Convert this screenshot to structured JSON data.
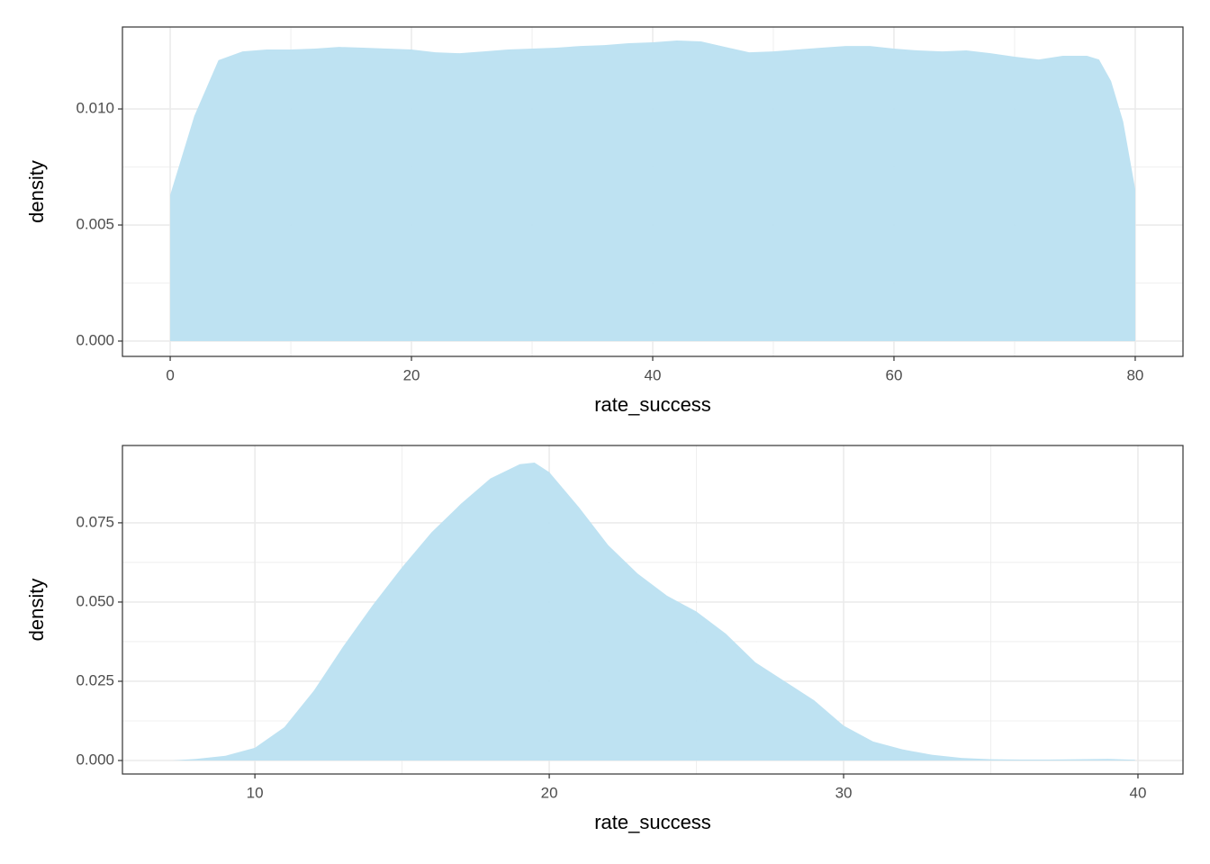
{
  "chart_data": [
    {
      "type": "area",
      "x_label": "rate_success",
      "y_label": "density",
      "color": "#bae0f1",
      "grid": true,
      "xlim": [
        -3.96,
        83.96
      ],
      "ylim": [
        -0.00066,
        0.01353
      ],
      "xticks": [
        0,
        20,
        40,
        60,
        80
      ],
      "yticks": [
        {
          "value": 0,
          "label": "0.000"
        },
        {
          "value": 0.005,
          "label": "0.005"
        },
        {
          "value": 0.01,
          "label": "0.010"
        }
      ],
      "x": [
        0,
        2,
        4,
        6,
        8,
        10,
        12,
        14,
        16,
        18,
        20,
        22,
        24,
        26,
        28,
        30,
        32,
        34,
        36,
        38,
        40,
        42,
        44,
        46,
        48,
        50,
        52,
        54,
        56,
        58,
        60,
        62,
        64,
        66,
        68,
        70,
        72,
        74,
        76,
        77,
        78,
        79,
        80
      ],
      "values": [
        0.0063,
        0.0097,
        0.0121,
        0.01248,
        0.01256,
        0.01256,
        0.0126,
        0.01267,
        0.01264,
        0.0126,
        0.01256,
        0.01244,
        0.0124,
        0.01248,
        0.01256,
        0.0126,
        0.01264,
        0.01271,
        0.01275,
        0.01283,
        0.01287,
        0.01295,
        0.01291,
        0.01267,
        0.01244,
        0.01248,
        0.01256,
        0.01264,
        0.01271,
        0.01271,
        0.0126,
        0.01252,
        0.01248,
        0.01252,
        0.0124,
        0.01225,
        0.01213,
        0.01229,
        0.01229,
        0.01213,
        0.0112,
        0.00946,
        0.00655
      ]
    },
    {
      "type": "area",
      "x_label": "rate_success",
      "y_label": "density",
      "color": "#bae0f1",
      "grid": true,
      "xlim": [
        5.5,
        41.53
      ],
      "ylim": [
        -0.00426,
        0.0994
      ],
      "xticks": [
        10,
        20,
        30,
        40
      ],
      "yticks": [
        {
          "value": 0,
          "label": "0.000"
        },
        {
          "value": 0.025,
          "label": "0.025"
        },
        {
          "value": 0.05,
          "label": "0.050"
        },
        {
          "value": 0.075,
          "label": "0.075"
        }
      ],
      "x": [
        7.2,
        8,
        9,
        10,
        11,
        12,
        13,
        14,
        15,
        16,
        17,
        18,
        19,
        19.5,
        20,
        21,
        22,
        23,
        24,
        25,
        26,
        27,
        28,
        29,
        30,
        31,
        32,
        33,
        34,
        35,
        36,
        37,
        38,
        39,
        39.9
      ],
      "values": [
        0,
        0.0005,
        0.0015,
        0.004,
        0.0105,
        0.022,
        0.036,
        0.049,
        0.061,
        0.072,
        0.081,
        0.089,
        0.0935,
        0.094,
        0.091,
        0.08,
        0.068,
        0.059,
        0.052,
        0.047,
        0.04,
        0.031,
        0.025,
        0.019,
        0.011,
        0.006,
        0.0035,
        0.0018,
        0.0008,
        0.0004,
        0.0003,
        0.0003,
        0.0004,
        0.0005,
        0.0002
      ]
    }
  ]
}
